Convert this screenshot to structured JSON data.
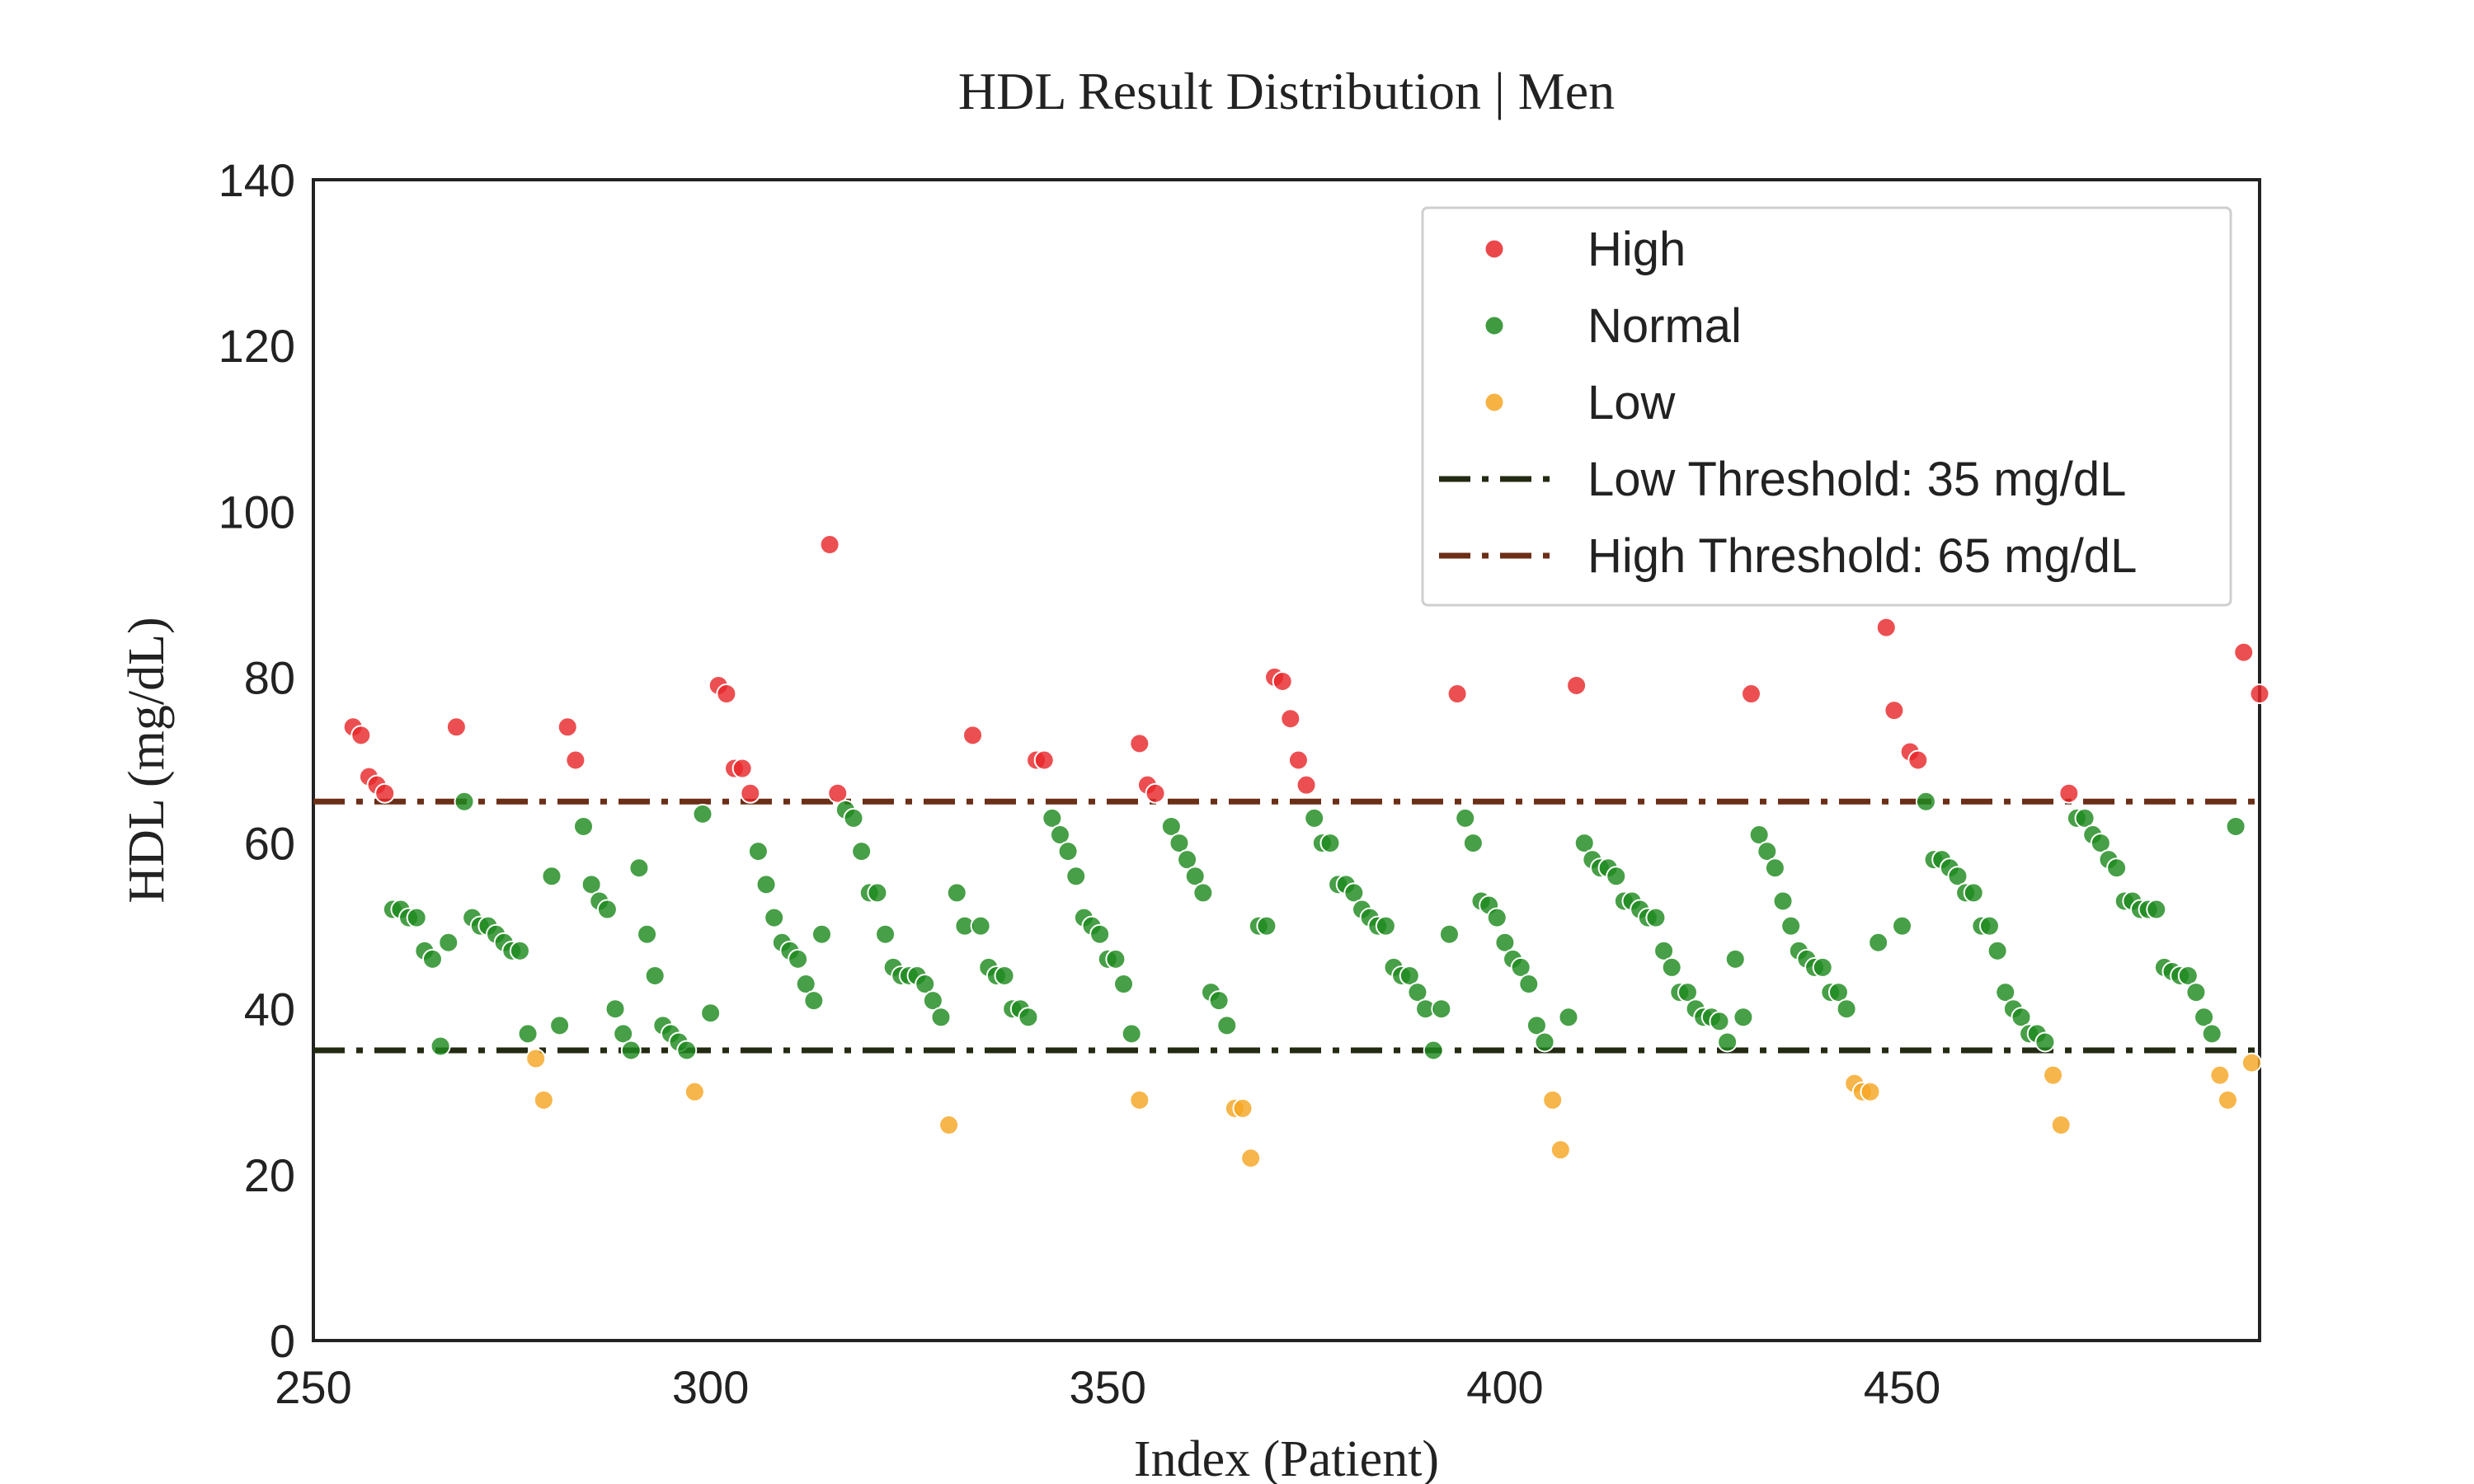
{
  "chart_data": {
    "type": "scatter",
    "title": "HDL Result Distribution | Men",
    "xlabel": "Index (Patient)",
    "ylabel": "HDL (mg/dL)",
    "xlim": [
      250,
      495
    ],
    "ylim": [
      0,
      140
    ],
    "xticks": [
      250,
      300,
      350,
      400,
      450
    ],
    "yticks": [
      0,
      20,
      40,
      60,
      80,
      100,
      120,
      140
    ],
    "grid": false,
    "legend_position": "top-right",
    "colors": {
      "High": "#e8282b",
      "Normal": "#1f8a1f",
      "Low": "#f5a623",
      "low_line": "#232a12",
      "high_line": "#6b2e16"
    },
    "thresholds": [
      {
        "name": "Low Threshold: 35 mg/dL",
        "value": 35,
        "color": "#232a12"
      },
      {
        "name": "High Threshold: 65 mg/dL",
        "value": 65,
        "color": "#6b2e16"
      }
    ],
    "series": [
      {
        "name": "High",
        "color": "#e8282b",
        "points": [
          [
            255,
            74
          ],
          [
            256,
            73
          ],
          [
            257,
            68
          ],
          [
            258,
            67
          ],
          [
            259,
            66
          ],
          [
            268,
            74
          ],
          [
            282,
            74
          ],
          [
            283,
            70
          ],
          [
            301,
            79
          ],
          [
            302,
            78
          ],
          [
            303,
            69
          ],
          [
            304,
            69
          ],
          [
            305,
            66
          ],
          [
            315,
            96
          ],
          [
            316,
            66
          ],
          [
            333,
            73
          ],
          [
            341,
            70
          ],
          [
            342,
            70
          ],
          [
            354,
            72
          ],
          [
            355,
            67
          ],
          [
            356,
            66
          ],
          [
            371,
            80
          ],
          [
            372,
            79.5
          ],
          [
            373,
            75
          ],
          [
            374,
            70
          ],
          [
            375,
            67
          ],
          [
            394,
            78
          ],
          [
            409,
            79
          ],
          [
            431,
            78
          ],
          [
            448,
            86
          ],
          [
            449,
            76
          ],
          [
            451,
            71
          ],
          [
            452,
            70
          ],
          [
            471,
            66
          ],
          [
            493,
            83
          ],
          [
            495,
            78
          ]
        ]
      },
      {
        "name": "Normal",
        "color": "#1f8a1f",
        "points": [
          [
            260,
            52
          ],
          [
            261,
            52
          ],
          [
            262,
            51
          ],
          [
            263,
            51
          ],
          [
            264,
            47
          ],
          [
            265,
            46
          ],
          [
            266,
            35.5
          ],
          [
            267,
            48
          ],
          [
            269,
            65
          ],
          [
            270,
            51
          ],
          [
            271,
            50
          ],
          [
            272,
            50
          ],
          [
            273,
            49
          ],
          [
            274,
            48
          ],
          [
            275,
            47
          ],
          [
            276,
            47
          ],
          [
            277,
            37
          ],
          [
            280,
            56
          ],
          [
            281,
            38
          ],
          [
            284,
            62
          ],
          [
            285,
            55
          ],
          [
            286,
            53
          ],
          [
            287,
            52
          ],
          [
            288,
            40
          ],
          [
            289,
            37
          ],
          [
            290,
            35
          ],
          [
            291,
            57
          ],
          [
            292,
            49
          ],
          [
            293,
            44
          ],
          [
            294,
            38
          ],
          [
            295,
            37
          ],
          [
            296,
            36
          ],
          [
            297,
            35
          ],
          [
            299,
            63.5
          ],
          [
            300,
            39.5
          ],
          [
            306,
            59
          ],
          [
            307,
            55
          ],
          [
            308,
            51
          ],
          [
            309,
            48
          ],
          [
            310,
            47
          ],
          [
            311,
            46
          ],
          [
            312,
            43
          ],
          [
            313,
            41
          ],
          [
            314,
            49
          ],
          [
            317,
            64
          ],
          [
            318,
            63
          ],
          [
            319,
            59
          ],
          [
            320,
            54
          ],
          [
            321,
            54
          ],
          [
            322,
            49
          ],
          [
            323,
            45
          ],
          [
            324,
            44
          ],
          [
            325,
            44
          ],
          [
            326,
            44
          ],
          [
            327,
            43
          ],
          [
            328,
            41
          ],
          [
            329,
            39
          ],
          [
            331,
            54
          ],
          [
            332,
            50
          ],
          [
            334,
            50
          ],
          [
            335,
            45
          ],
          [
            336,
            44
          ],
          [
            337,
            44
          ],
          [
            338,
            40
          ],
          [
            339,
            40
          ],
          [
            340,
            39
          ],
          [
            343,
            63
          ],
          [
            344,
            61
          ],
          [
            345,
            59
          ],
          [
            346,
            56
          ],
          [
            347,
            51
          ],
          [
            348,
            50
          ],
          [
            349,
            49
          ],
          [
            350,
            46
          ],
          [
            351,
            46
          ],
          [
            352,
            43
          ],
          [
            353,
            37
          ],
          [
            358,
            62
          ],
          [
            359,
            60
          ],
          [
            360,
            58
          ],
          [
            361,
            56
          ],
          [
            362,
            54
          ],
          [
            363,
            42
          ],
          [
            364,
            41
          ],
          [
            365,
            38
          ],
          [
            369,
            50
          ],
          [
            370,
            50
          ],
          [
            376,
            63
          ],
          [
            377,
            60
          ],
          [
            378,
            60
          ],
          [
            379,
            55
          ],
          [
            380,
            55
          ],
          [
            381,
            54
          ],
          [
            382,
            52
          ],
          [
            383,
            51
          ],
          [
            384,
            50
          ],
          [
            385,
            50
          ],
          [
            386,
            45
          ],
          [
            387,
            44
          ],
          [
            388,
            44
          ],
          [
            389,
            42
          ],
          [
            390,
            40
          ],
          [
            391,
            35
          ],
          [
            392,
            40
          ],
          [
            393,
            49
          ],
          [
            395,
            63
          ],
          [
            396,
            60
          ],
          [
            397,
            53
          ],
          [
            398,
            52.5
          ],
          [
            399,
            51
          ],
          [
            400,
            48
          ],
          [
            401,
            46
          ],
          [
            402,
            45
          ],
          [
            403,
            43
          ],
          [
            404,
            38
          ],
          [
            405,
            36
          ],
          [
            408,
            39
          ],
          [
            410,
            60
          ],
          [
            411,
            58
          ],
          [
            412,
            57
          ],
          [
            413,
            57
          ],
          [
            414,
            56
          ],
          [
            415,
            53
          ],
          [
            416,
            53
          ],
          [
            417,
            52
          ],
          [
            418,
            51
          ],
          [
            419,
            51
          ],
          [
            420,
            47
          ],
          [
            421,
            45
          ],
          [
            422,
            42
          ],
          [
            423,
            42
          ],
          [
            424,
            40
          ],
          [
            425,
            39
          ],
          [
            426,
            39
          ],
          [
            427,
            38.5
          ],
          [
            428,
            36
          ],
          [
            429,
            46
          ],
          [
            430,
            39
          ],
          [
            432,
            61
          ],
          [
            433,
            59
          ],
          [
            434,
            57
          ],
          [
            435,
            53
          ],
          [
            436,
            50
          ],
          [
            437,
            47
          ],
          [
            438,
            46
          ],
          [
            439,
            45
          ],
          [
            440,
            45
          ],
          [
            441,
            42
          ],
          [
            442,
            42
          ],
          [
            443,
            40
          ],
          [
            447,
            48
          ],
          [
            450,
            50
          ],
          [
            453,
            65
          ],
          [
            454,
            58
          ],
          [
            455,
            58
          ],
          [
            456,
            57
          ],
          [
            457,
            56
          ],
          [
            458,
            54
          ],
          [
            459,
            54
          ],
          [
            460,
            50
          ],
          [
            461,
            50
          ],
          [
            462,
            47
          ],
          [
            463,
            42
          ],
          [
            464,
            40
          ],
          [
            465,
            39
          ],
          [
            466,
            37
          ],
          [
            467,
            37
          ],
          [
            468,
            36
          ],
          [
            472,
            63
          ],
          [
            473,
            63
          ],
          [
            474,
            61
          ],
          [
            475,
            60
          ],
          [
            476,
            58
          ],
          [
            477,
            57
          ],
          [
            478,
            53
          ],
          [
            479,
            53
          ],
          [
            480,
            52
          ],
          [
            481,
            52
          ],
          [
            482,
            52
          ],
          [
            483,
            45
          ],
          [
            484,
            44.5
          ],
          [
            485,
            44
          ],
          [
            486,
            44
          ],
          [
            487,
            42
          ],
          [
            488,
            39
          ],
          [
            489,
            37
          ],
          [
            492,
            62
          ]
        ]
      },
      {
        "name": "Low",
        "color": "#f5a623",
        "points": [
          [
            278,
            34
          ],
          [
            279,
            29
          ],
          [
            298,
            30
          ],
          [
            330,
            26
          ],
          [
            354,
            29
          ],
          [
            366,
            28
          ],
          [
            367,
            28
          ],
          [
            368,
            22
          ],
          [
            406,
            29
          ],
          [
            407,
            23
          ],
          [
            444,
            31
          ],
          [
            445,
            30
          ],
          [
            446,
            30
          ],
          [
            469,
            32
          ],
          [
            470,
            26
          ],
          [
            490,
            32
          ],
          [
            491,
            29
          ],
          [
            494,
            33.5
          ]
        ]
      }
    ]
  }
}
